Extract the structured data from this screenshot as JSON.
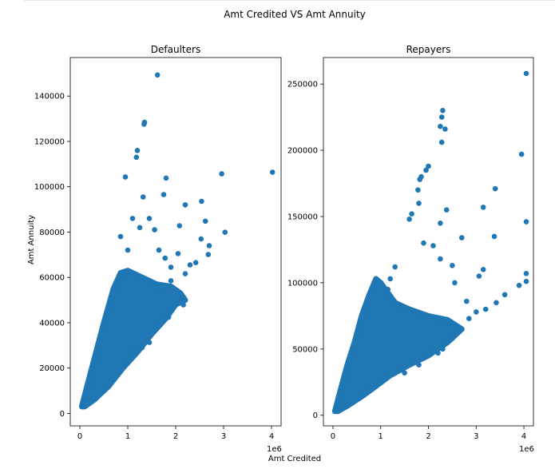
{
  "figure": {
    "suptitle": "Amt Credited VS Amt Annuity",
    "xlabel": "Amt Credited",
    "ylabel": "Amt Annuity"
  },
  "chart_data": [
    {
      "type": "scatter",
      "title": "Defaulters",
      "xlabel": "Amt Credited",
      "ylabel": "Amt Annuity",
      "x_offset_label": "1e6",
      "xlim": [
        -200000.0,
        4200000.0
      ],
      "ylim": [
        -5500,
        157000
      ],
      "xticks": [
        0,
        1000000,
        2000000,
        3000000,
        4000000
      ],
      "xtick_labels": [
        "0",
        "1",
        "2",
        "3",
        "4"
      ],
      "yticks": [
        0,
        20000,
        40000,
        60000,
        80000,
        100000,
        120000,
        140000
      ],
      "ytick_labels": [
        "0",
        "20000",
        "40000",
        "60000",
        "80000",
        "100000",
        "120000",
        "140000"
      ],
      "color": "#1f77b4",
      "grid": false,
      "points": [
        [
          1620000,
          149300
        ],
        [
          1350000,
          128400
        ],
        [
          1340000,
          127600
        ],
        [
          1200000,
          116000
        ],
        [
          1180000,
          113000
        ],
        [
          4020000,
          106400
        ],
        [
          2960000,
          105700
        ],
        [
          950000,
          104300
        ],
        [
          1800000,
          103800
        ],
        [
          1750000,
          96500
        ],
        [
          1320000,
          95500
        ],
        [
          2540000,
          93600
        ],
        [
          3030000,
          79900
        ],
        [
          2200000,
          92000
        ],
        [
          2620000,
          84800
        ],
        [
          2080000,
          82800
        ],
        [
          1560000,
          81000
        ],
        [
          2680000,
          70100
        ],
        [
          2530000,
          77000
        ],
        [
          2200000,
          61600
        ],
        [
          2080000,
          49500
        ],
        [
          2160000,
          47900
        ],
        [
          1850000,
          42400
        ],
        [
          1450000,
          31300
        ],
        [
          1300000,
          29000
        ],
        [
          1100000,
          27000
        ],
        [
          1900000,
          58500
        ],
        [
          2300000,
          65500
        ],
        [
          2700000,
          74000
        ],
        [
          1700000,
          53600
        ],
        [
          1000000,
          72000
        ],
        [
          1100000,
          86000
        ],
        [
          850000,
          78000
        ],
        [
          1250000,
          82000
        ],
        [
          1450000,
          86000
        ],
        [
          1900000,
          64500
        ],
        [
          2050000,
          70500
        ],
        [
          1650000,
          72000
        ],
        [
          1780000,
          68500
        ],
        [
          2420000,
          66500
        ]
      ],
      "dense_region": {
        "upper_boundary": [
          [
            40000,
            3000
          ],
          [
            150000,
            12000
          ],
          [
            300000,
            24000
          ],
          [
            500000,
            40000
          ],
          [
            700000,
            55000
          ],
          [
            850000,
            62000
          ],
          [
            1000000,
            63000
          ],
          [
            1300000,
            60000
          ],
          [
            1600000,
            57000
          ],
          [
            1900000,
            56000
          ],
          [
            2100000,
            53000
          ],
          [
            2200000,
            50000
          ]
        ],
        "lower_boundary": [
          [
            2200000,
            50000
          ],
          [
            2000000,
            48000
          ],
          [
            1800000,
            42000
          ],
          [
            1500000,
            35000
          ],
          [
            1200000,
            27000
          ],
          [
            900000,
            20000
          ],
          [
            600000,
            12000
          ],
          [
            300000,
            6000
          ],
          [
            100000,
            3000
          ],
          [
            40000,
            3000
          ]
        ]
      }
    },
    {
      "type": "scatter",
      "title": "Repayers",
      "x_offset_label": "1e6",
      "xlim": [
        -200000.0,
        4200000.0
      ],
      "ylim": [
        -8000,
        270000
      ],
      "xticks": [
        0,
        1000000,
        2000000,
        3000000,
        4000000
      ],
      "xtick_labels": [
        "0",
        "1",
        "2",
        "3",
        "4"
      ],
      "yticks": [
        0,
        50000,
        100000,
        150000,
        200000,
        250000
      ],
      "ytick_labels": [
        "0",
        "50000",
        "100000",
        "150000",
        "200000",
        "250000"
      ],
      "color": "#1f77b4",
      "grid": false,
      "points": [
        [
          4050000,
          258000
        ],
        [
          3950000,
          197000
        ],
        [
          4050000,
          146000
        ],
        [
          3400000,
          171000
        ],
        [
          3150000,
          157000
        ],
        [
          3380000,
          135000
        ],
        [
          4050000,
          107000
        ],
        [
          4050000,
          101000
        ],
        [
          3900000,
          98000
        ],
        [
          3600000,
          91000
        ],
        [
          3420000,
          85000
        ],
        [
          3150000,
          110000
        ],
        [
          3060000,
          105000
        ],
        [
          2700000,
          134000
        ],
        [
          2380000,
          155000
        ],
        [
          2280000,
          206000
        ],
        [
          2300000,
          230000
        ],
        [
          2250000,
          218000
        ],
        [
          2350000,
          216000
        ],
        [
          2280000,
          225000
        ],
        [
          2000000,
          188000
        ],
        [
          1950000,
          185000
        ],
        [
          1850000,
          180000
        ],
        [
          1820000,
          178000
        ],
        [
          1780000,
          170000
        ],
        [
          1650000,
          152000
        ],
        [
          1600000,
          148000
        ],
        [
          2250000,
          145000
        ],
        [
          2250000,
          118000
        ],
        [
          2500000,
          113000
        ],
        [
          2550000,
          100000
        ],
        [
          2800000,
          86000
        ],
        [
          3000000,
          78000
        ],
        [
          3200000,
          80000
        ],
        [
          2850000,
          73000
        ],
        [
          2500000,
          58000
        ],
        [
          2300000,
          50000
        ],
        [
          2200000,
          47000
        ],
        [
          1800000,
          38000
        ],
        [
          1500000,
          32000
        ],
        [
          1150000,
          95000
        ],
        [
          1300000,
          112000
        ],
        [
          1200000,
          103000
        ],
        [
          1900000,
          130000
        ],
        [
          2100000,
          128000
        ],
        [
          1800000,
          160000
        ]
      ],
      "dense_region": {
        "upper_boundary": [
          [
            40000,
            3000
          ],
          [
            150000,
            18000
          ],
          [
            300000,
            38000
          ],
          [
            450000,
            55000
          ],
          [
            600000,
            75000
          ],
          [
            750000,
            90000
          ],
          [
            900000,
            103000
          ],
          [
            1000000,
            100000
          ],
          [
            1300000,
            85000
          ],
          [
            1600000,
            80000
          ],
          [
            2000000,
            75000
          ],
          [
            2400000,
            72000
          ],
          [
            2700000,
            65000
          ]
        ],
        "lower_boundary": [
          [
            2700000,
            65000
          ],
          [
            2400000,
            55000
          ],
          [
            2000000,
            45000
          ],
          [
            1600000,
            38000
          ],
          [
            1200000,
            30000
          ],
          [
            900000,
            22000
          ],
          [
            600000,
            14000
          ],
          [
            300000,
            7000
          ],
          [
            100000,
            3000
          ],
          [
            40000,
            3000
          ]
        ]
      }
    }
  ]
}
